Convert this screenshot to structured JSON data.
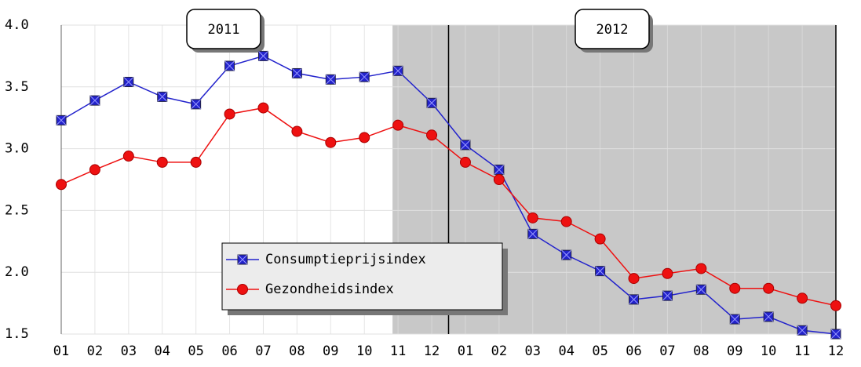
{
  "chart_data": {
    "type": "line",
    "categories": [
      "01",
      "02",
      "03",
      "04",
      "05",
      "06",
      "07",
      "08",
      "09",
      "10",
      "11",
      "12",
      "01",
      "02",
      "03",
      "04",
      "05",
      "06",
      "07",
      "08",
      "09",
      "10",
      "11",
      "12"
    ],
    "years": [
      "2011",
      "2012"
    ],
    "series": [
      {
        "name": "Consumptieprijsindex",
        "color": "#2222cc",
        "marker": "square",
        "values": [
          3.23,
          3.39,
          3.54,
          3.42,
          3.36,
          3.67,
          3.75,
          3.61,
          3.56,
          3.58,
          3.63,
          3.37,
          3.03,
          2.83,
          2.31,
          2.14,
          2.01,
          1.78,
          1.81,
          1.86,
          1.62,
          1.64,
          1.53,
          1.5
        ]
      },
      {
        "name": "Gezondheidsindex",
        "color": "#ee1111",
        "marker": "circle",
        "values": [
          2.71,
          2.83,
          2.94,
          2.89,
          2.89,
          3.28,
          3.33,
          3.14,
          3.05,
          3.09,
          3.19,
          3.11,
          2.89,
          2.75,
          2.44,
          2.41,
          2.27,
          1.95,
          1.99,
          2.03,
          1.87,
          1.87,
          1.79,
          1.73
        ]
      }
    ],
    "ylim": [
      1.5,
      4.0
    ],
    "yticks": [
      {
        "value": 1.5,
        "label": "1.5"
      },
      {
        "value": 2.0,
        "label": "2.0"
      },
      {
        "value": 2.5,
        "label": "2.5"
      },
      {
        "value": 3.0,
        "label": "3.0"
      },
      {
        "value": 3.5,
        "label": "3.5"
      },
      {
        "value": 4.0,
        "label": "4.0"
      }
    ],
    "grid": true
  }
}
